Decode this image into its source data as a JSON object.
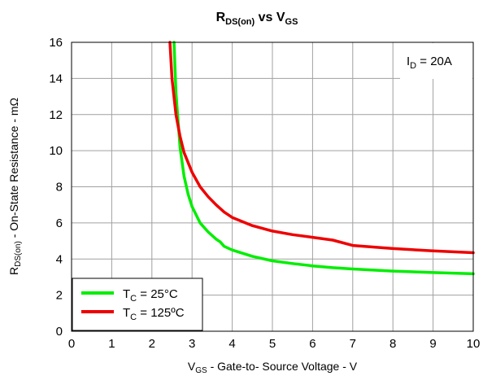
{
  "chart_data": {
    "type": "line",
    "title": {
      "main": "R",
      "sub1": "DS(on)",
      "mid": " vs V",
      "sub2": "GS"
    },
    "xlabel": {
      "pre": "V",
      "sub": "GS",
      "post": " - Gate-to- Source Voltage - V"
    },
    "ylabel": {
      "pre": "R",
      "sub": "DS(on)",
      "post": " - On-State Resistance - mΩ"
    },
    "xlim": [
      0,
      10
    ],
    "ylim": [
      0,
      16
    ],
    "xticks": [
      "0",
      "1",
      "2",
      "3",
      "4",
      "5",
      "6",
      "7",
      "8",
      "9",
      "10"
    ],
    "yticks": [
      "0",
      "2",
      "4",
      "6",
      "8",
      "10",
      "12",
      "14",
      "16"
    ],
    "grid": true,
    "annotation": {
      "pre": "I",
      "sub": "D",
      "post": " = 20A",
      "position": "top-right"
    },
    "legend_position": "bottom-left",
    "series": [
      {
        "name": {
          "pre": "T",
          "sub": "C",
          "post": " = 25°C"
        },
        "color": "#00ee00",
        "points": [
          [
            2.55,
            16
          ],
          [
            2.6,
            13.2
          ],
          [
            2.7,
            10.2
          ],
          [
            2.8,
            8.6
          ],
          [
            2.9,
            7.6
          ],
          [
            3.0,
            6.9
          ],
          [
            3.2,
            6.0
          ],
          [
            3.4,
            5.5
          ],
          [
            3.6,
            5.1
          ],
          [
            3.7,
            4.95
          ],
          [
            3.8,
            4.7
          ],
          [
            4.0,
            4.5
          ],
          [
            4.5,
            4.15
          ],
          [
            5.0,
            3.9
          ],
          [
            5.5,
            3.75
          ],
          [
            6.0,
            3.62
          ],
          [
            6.5,
            3.52
          ],
          [
            7.0,
            3.45
          ],
          [
            8.0,
            3.33
          ],
          [
            9.0,
            3.25
          ],
          [
            10.0,
            3.18
          ]
        ]
      },
      {
        "name": {
          "pre": "T",
          "sub": "C",
          "post": " = 125ºC"
        },
        "color": "#ee0000",
        "points": [
          [
            2.45,
            16
          ],
          [
            2.5,
            14.0
          ],
          [
            2.6,
            12.0
          ],
          [
            2.7,
            10.8
          ],
          [
            2.8,
            9.9
          ],
          [
            3.0,
            8.8
          ],
          [
            3.2,
            8.0
          ],
          [
            3.4,
            7.45
          ],
          [
            3.6,
            7.0
          ],
          [
            3.8,
            6.6
          ],
          [
            4.0,
            6.3
          ],
          [
            4.5,
            5.85
          ],
          [
            5.0,
            5.55
          ],
          [
            5.5,
            5.35
          ],
          [
            6.0,
            5.2
          ],
          [
            6.5,
            5.05
          ],
          [
            7.0,
            4.75
          ],
          [
            8.0,
            4.58
          ],
          [
            9.0,
            4.45
          ],
          [
            10.0,
            4.35
          ]
        ]
      }
    ]
  }
}
